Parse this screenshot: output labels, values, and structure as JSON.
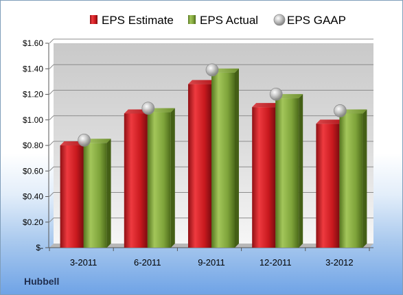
{
  "company_label": "Hubbell",
  "colors": {
    "estimate": "#c8191e",
    "actual": "#7ea33a",
    "gaap": "#a8a8a8"
  },
  "chart_data": {
    "type": "bar",
    "categories": [
      "3-2011",
      "6-2011",
      "9-2011",
      "12-2011",
      "3-2012"
    ],
    "series": [
      {
        "name": "EPS Estimate",
        "type": "bar",
        "values": [
          0.8,
          1.05,
          1.28,
          1.1,
          0.97
        ]
      },
      {
        "name": "EPS Actual",
        "type": "bar",
        "values": [
          0.82,
          1.06,
          1.37,
          1.17,
          1.05
        ]
      },
      {
        "name": "EPS GAAP",
        "type": "scatter",
        "values": [
          0.82,
          1.07,
          1.37,
          1.18,
          1.05
        ]
      }
    ],
    "ylim": [
      0,
      1.6
    ],
    "yticks": [
      0,
      0.2,
      0.4,
      0.6,
      0.8,
      1.0,
      1.2,
      1.4,
      1.6
    ],
    "ytick_labels": [
      "$-",
      "$0.20",
      "$0.40",
      "$0.60",
      "$0.80",
      "$1.00",
      "$1.20",
      "$1.40",
      "$1.60"
    ],
    "grid": true,
    "legend_position": "top"
  }
}
